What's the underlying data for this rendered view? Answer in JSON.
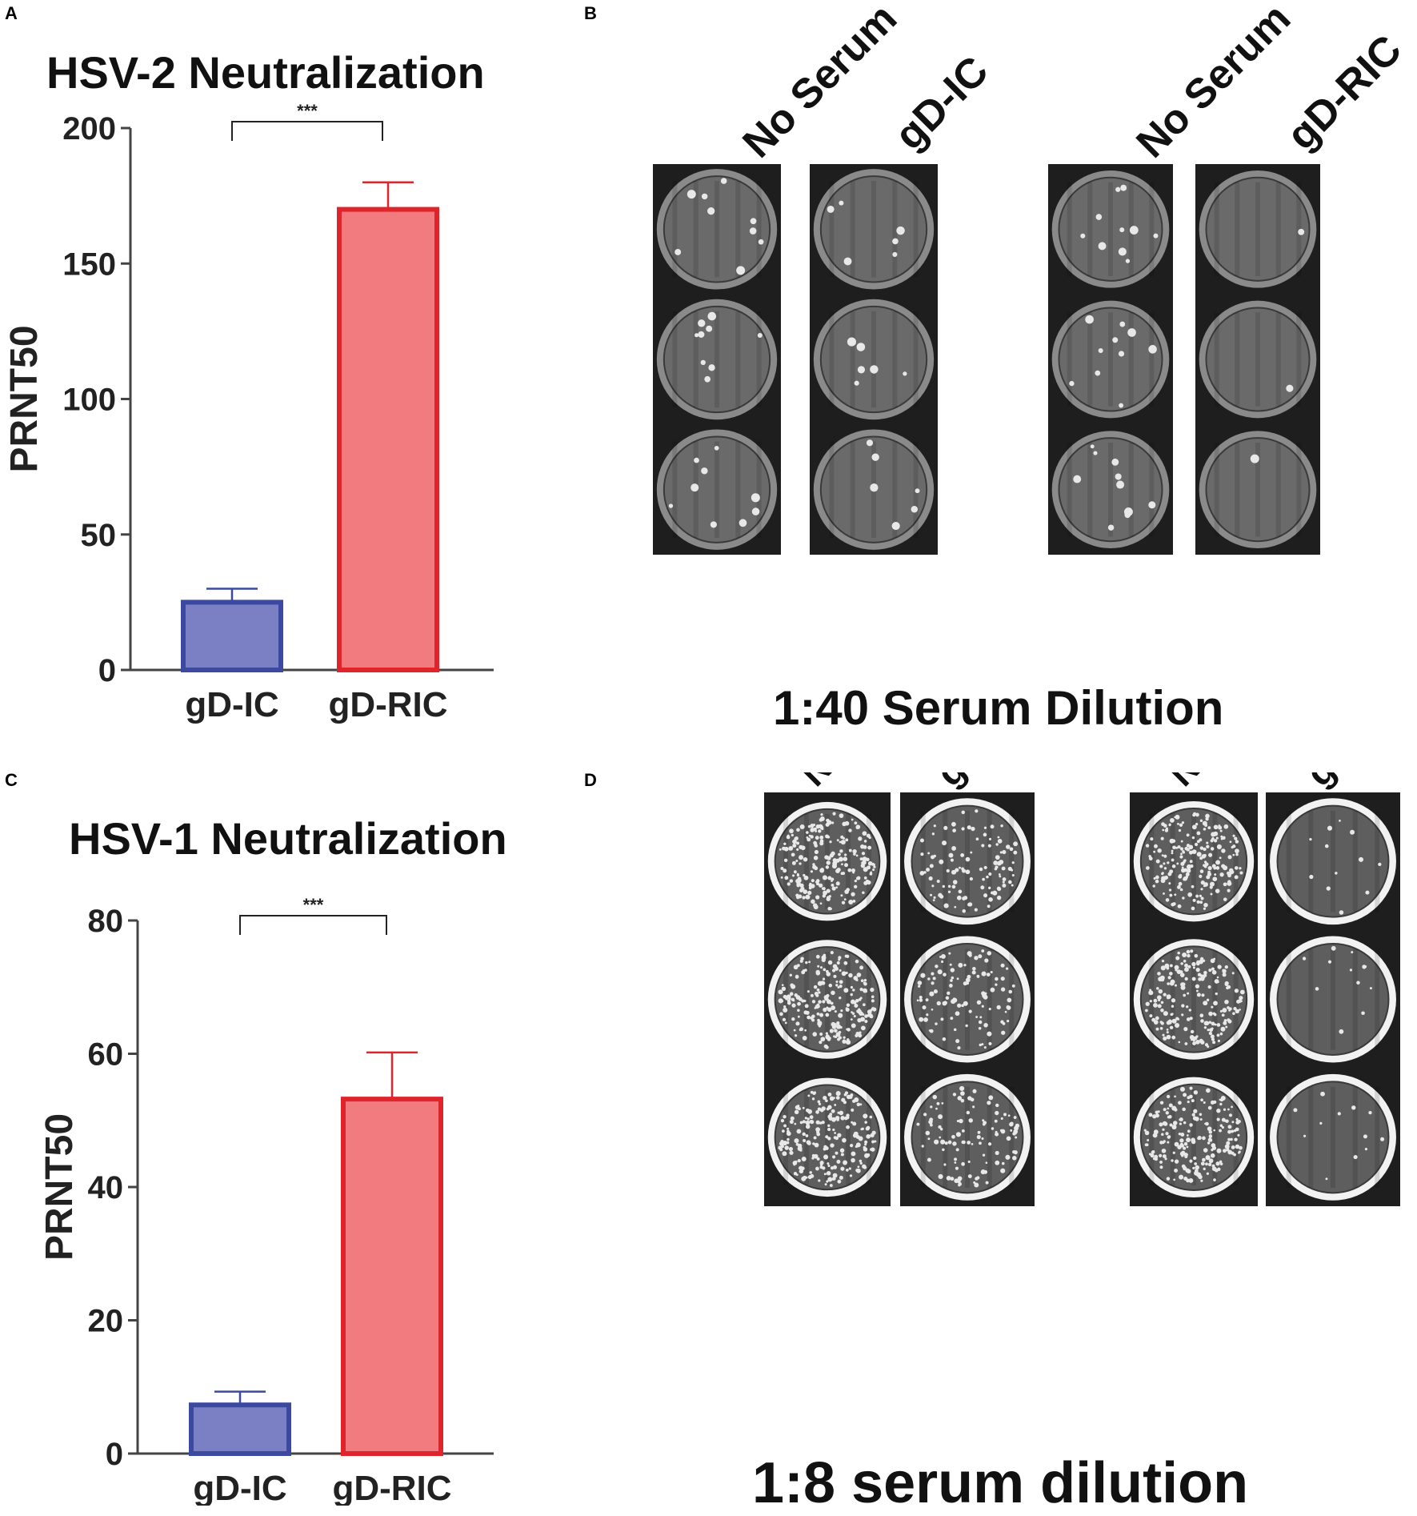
{
  "panels": {
    "A": "A",
    "B": "B",
    "C": "C",
    "D": "D"
  },
  "colors": {
    "ic_fill": "#7b7fc4",
    "ic_stroke": "#3b4aa0",
    "ric_fill": "#f27b7f",
    "ric_stroke": "#e0242b",
    "axis": "#444444"
  },
  "chart_data": [
    {
      "type": "bar",
      "title": "HSV-2 Neutralization",
      "ylabel": "PRNT50",
      "xlabel": "",
      "categories": [
        "gD-IC",
        "gD-RIC"
      ],
      "values": [
        25,
        170
      ],
      "errors": [
        5,
        10
      ],
      "ylim": [
        0,
        200
      ],
      "yticks": [
        0,
        50,
        100,
        150,
        200
      ],
      "significance": "***"
    },
    {
      "type": "bar",
      "title": "HSV-1 Neutralization",
      "ylabel": "PRNT50",
      "xlabel": "",
      "categories": [
        "gD-IC",
        "gD-RIC"
      ],
      "values": [
        7.3,
        53.2
      ],
      "errors": [
        2,
        7
      ],
      "ylim": [
        0,
        80
      ],
      "yticks": [
        0,
        20,
        40,
        60,
        80
      ],
      "significance": "***"
    }
  ],
  "plates": {
    "B": {
      "labels": [
        "No Serum",
        "gD-IC",
        "No Serum",
        "gD-RIC"
      ],
      "dilution": "1:40 Serum Dilution"
    },
    "D": {
      "labels": [
        "No Serum",
        "gD-IC",
        "No Serum",
        "gD-RIC"
      ],
      "dilution": "1:8 serum dilution"
    }
  }
}
